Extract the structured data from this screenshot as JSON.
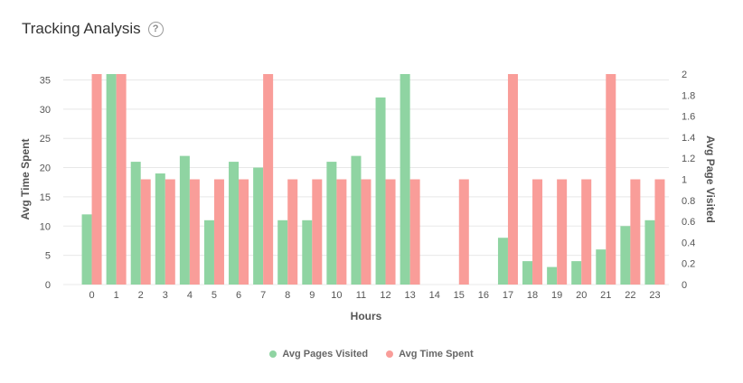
{
  "header": {
    "title": "Tracking Analysis",
    "help_icon": "?"
  },
  "colors": {
    "green": "#8fd4a2",
    "red": "#f99d99",
    "grid": "#e8e8e8"
  },
  "chart_data": {
    "type": "bar",
    "xlabel": "Hours",
    "ylabel_left": "Avg Time Spent",
    "ylabel_right": "Avg Page Visited",
    "categories": [
      "0",
      "1",
      "2",
      "3",
      "4",
      "5",
      "6",
      "7",
      "8",
      "9",
      "10",
      "11",
      "12",
      "13",
      "14",
      "15",
      "16",
      "17",
      "18",
      "19",
      "20",
      "21",
      "22",
      "23"
    ],
    "left_axis": {
      "min": 0,
      "max": 36,
      "ticks": [
        "0",
        "5",
        "10",
        "15",
        "20",
        "25",
        "30",
        "35"
      ]
    },
    "right_axis": {
      "min": 0,
      "max": 2.0,
      "ticks": [
        "0",
        "0.2",
        "0.4",
        "0.6",
        "0.8",
        "1",
        "1.2",
        "1.4",
        "1.6",
        "1.8",
        "2"
      ]
    },
    "series": [
      {
        "name": "Avg Pages Visited",
        "color": "#8fd4a2",
        "axis": "left",
        "values": [
          12,
          36,
          21,
          19,
          22,
          11,
          21,
          20,
          11,
          11,
          21,
          22,
          32,
          36,
          0,
          0,
          0,
          8,
          4,
          3,
          4,
          6,
          10,
          11
        ]
      },
      {
        "name": "Avg Time Spent",
        "color": "#f99d99",
        "axis": "right",
        "values": [
          2,
          2,
          1,
          1,
          1,
          1,
          1,
          2,
          1,
          1,
          1,
          1,
          1,
          1,
          0,
          1,
          0,
          2,
          1,
          1,
          1,
          2,
          1,
          1
        ]
      }
    ],
    "legend": {
      "position": "bottom"
    }
  }
}
